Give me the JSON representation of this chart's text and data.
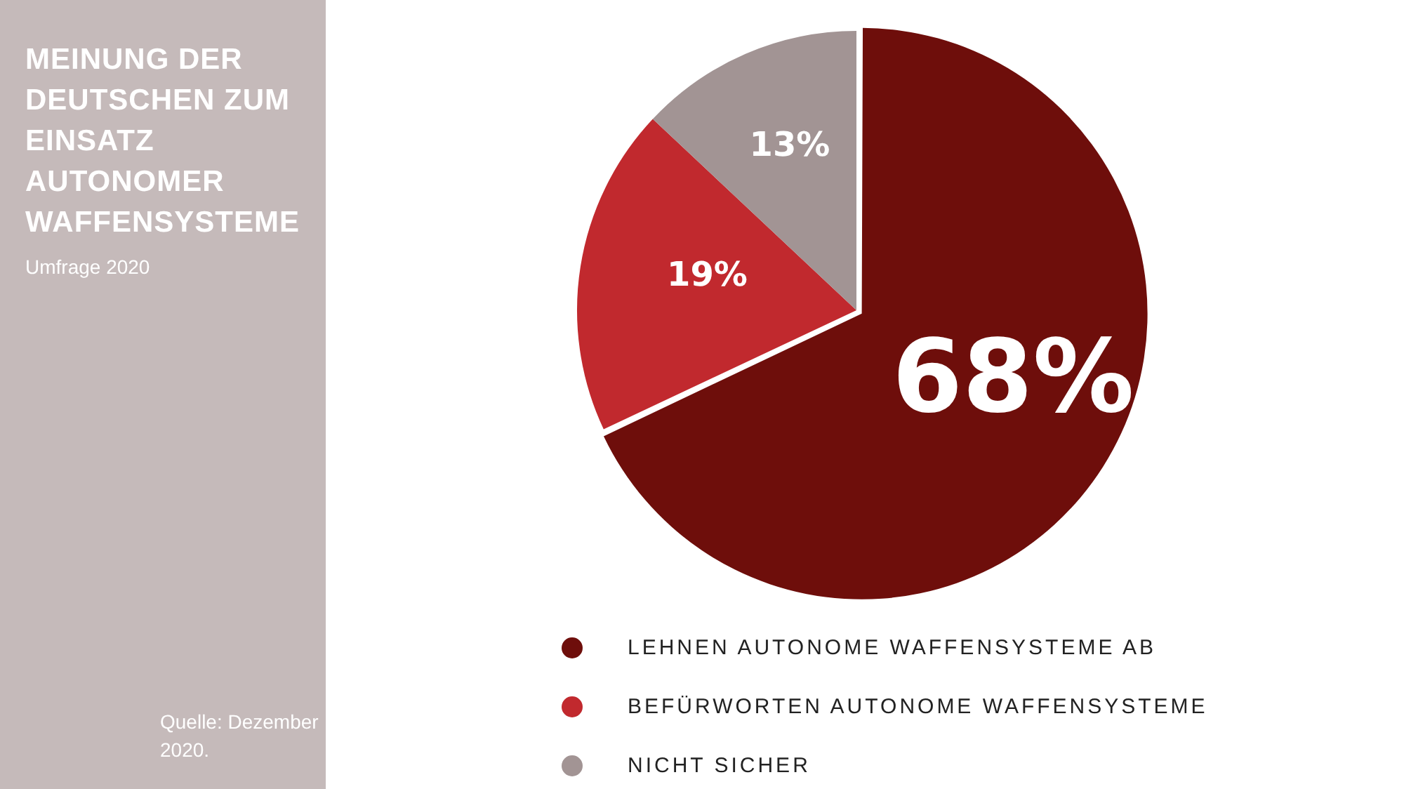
{
  "chart_data": {
    "type": "pie",
    "title": "MEINUNG DER DEUTSCHEN ZUM EINSATZ AUTONOMER WAFFENSYSTEME",
    "subtitle": "Umfrage 2020",
    "annotations": [
      "Quelle: Dezember 2020."
    ],
    "categories": [
      "LEHNEN AUTONOME WAFFENSYSTEME AB",
      "BEFÜRWORTEN AUTONOME WAFFENSYSTEME",
      "NICHT SICHER"
    ],
    "values": [
      68,
      19,
      13
    ],
    "value_labels": [
      "68%",
      "19%",
      "13%"
    ],
    "colors": [
      "#6e0e0b",
      "#c1292e",
      "#a29494"
    ],
    "legend": "bottom"
  }
}
